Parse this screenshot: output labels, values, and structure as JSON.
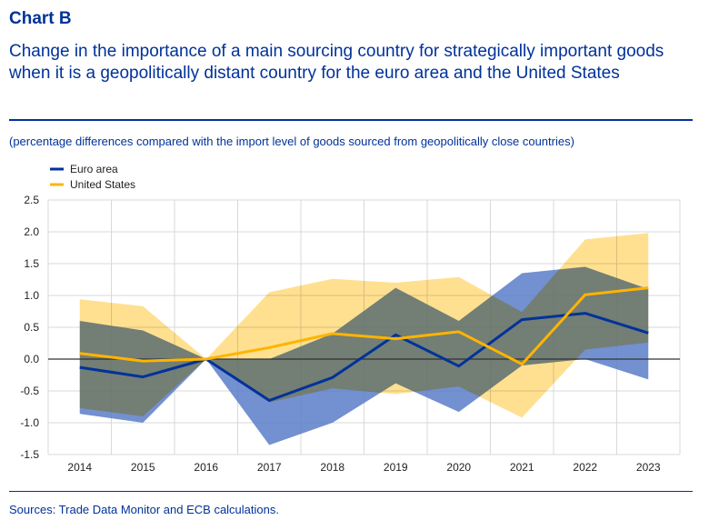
{
  "header": {
    "label": "Chart B",
    "title": "Change in the importance of a main sourcing country for strategically important goods when it is a geopolitically distant country for the euro area and the United States",
    "subtitle": "(percentage differences compared with the import level of goods sourced from geopolitically close countries)"
  },
  "footer": {
    "source": "Sources: Trade Data Monitor and ECB calculations."
  },
  "chart_data": {
    "type": "line",
    "x": [
      "2014",
      "2015",
      "2016",
      "2017",
      "2018",
      "2019",
      "2020",
      "2021",
      "2022",
      "2023"
    ],
    "ylim": [
      -1.5,
      2.5
    ],
    "yticks": [
      "2.5",
      "2.0",
      "1.5",
      "1.0",
      "0.5",
      "0.0",
      "-0.5",
      "-1.0",
      "-1.5"
    ],
    "ytick_values": [
      2.5,
      2.0,
      1.5,
      1.0,
      0.5,
      0.0,
      -0.5,
      -1.0,
      -1.5
    ],
    "grid": true,
    "legend_position": "top-left",
    "series": [
      {
        "name": "Euro area",
        "color": "#003299",
        "band_color": "#5B7DC8",
        "values": [
          -0.13,
          -0.28,
          0.0,
          -0.65,
          -0.29,
          0.38,
          -0.11,
          0.62,
          0.72,
          0.41
        ],
        "upper": [
          0.6,
          0.45,
          0.0,
          0.0,
          0.4,
          1.12,
          0.6,
          1.35,
          1.45,
          1.1
        ],
        "lower": [
          -0.86,
          -1.0,
          0.0,
          -1.35,
          -1.0,
          -0.38,
          -0.83,
          -0.1,
          0.0,
          -0.32
        ]
      },
      {
        "name": "United States",
        "color": "#FFB400",
        "band_color": "#FFD56B",
        "values": [
          0.09,
          -0.03,
          0.0,
          0.18,
          0.4,
          0.32,
          0.43,
          -0.08,
          1.01,
          1.12
        ],
        "upper": [
          0.94,
          0.83,
          0.0,
          1.05,
          1.26,
          1.2,
          1.29,
          0.74,
          1.88,
          1.98
        ],
        "lower": [
          -0.77,
          -0.9,
          0.0,
          -0.68,
          -0.46,
          -0.55,
          -0.43,
          -0.92,
          0.15,
          0.26
        ]
      }
    ]
  }
}
